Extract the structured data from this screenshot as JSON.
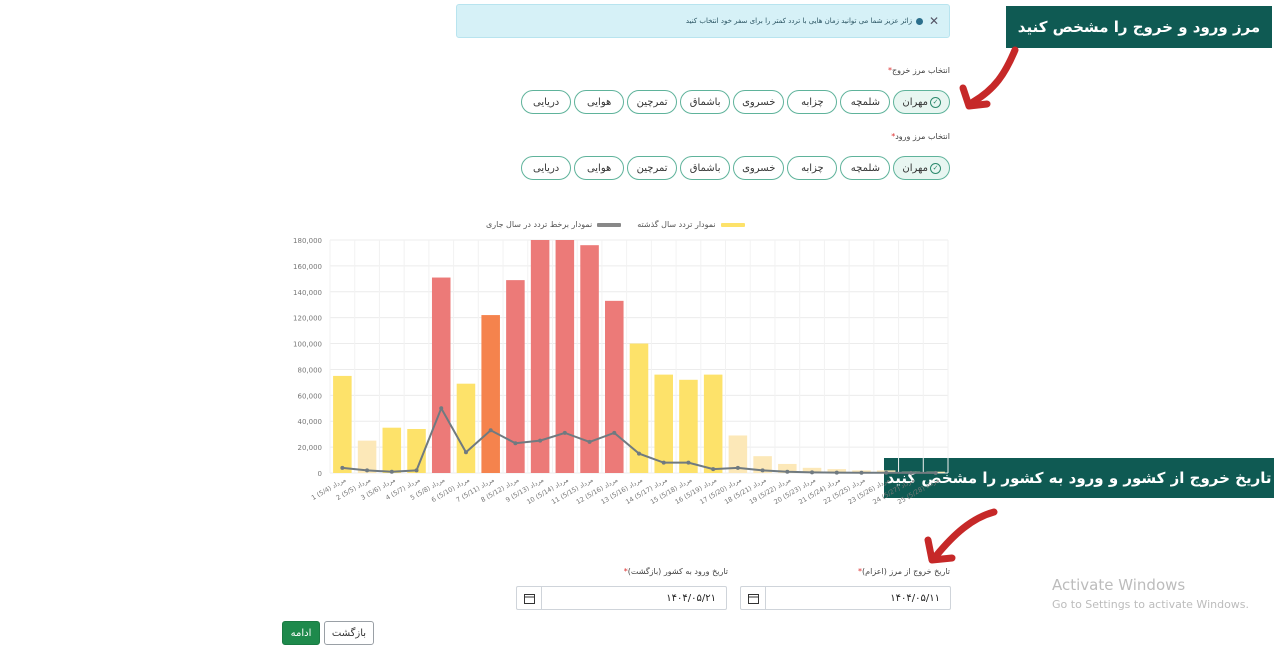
{
  "alert": {
    "text": "زائر عزیز شما می توانید زمان هایی با تردد کمتر را برای سفر خود انتخاب کنید"
  },
  "callouts": {
    "borders": "مرز ورود و خروج را مشخص کنید",
    "dates": "تاریخ خروج از کشور و ورود به کشور را مشخص کنید"
  },
  "exit_border": {
    "label": "انتخاب مرز خروج",
    "options": [
      "مهران",
      "شلمچه",
      "چزابه",
      "خسروی",
      "باشماق",
      "تمرچین",
      "هوایی",
      "دریایی"
    ],
    "selected": "مهران"
  },
  "entry_border": {
    "label": "انتخاب مرز ورود",
    "options": [
      "مهران",
      "شلمچه",
      "چزابه",
      "خسروی",
      "باشماق",
      "تمرچین",
      "هوایی",
      "دریایی"
    ],
    "selected": "مهران"
  },
  "colors": {
    "accent": "#1e8a4c",
    "pill_border": "#5fb39b",
    "bar_light": "#fce8b8",
    "bar_yellow": "#fde26a",
    "bar_red": "#ec7a78",
    "bar_orange": "#f5834d",
    "line": "#707a80",
    "callout": "#0f5a53",
    "arrow": "#c62828"
  },
  "chart_data": {
    "type": "bar",
    "legend": [
      {
        "name": "نمودار تردد سال گذشته",
        "color": "#fde26a"
      },
      {
        "name": "نمودار برخط تردد در سال جاری",
        "color": "#888888"
      }
    ],
    "categories": [
      "1 مرداد (5/4)",
      "2 مرداد (5/5)",
      "3 مرداد (5/6)",
      "4 مرداد (5/7)",
      "5 مرداد (5/8)",
      "6 مرداد (5/10)",
      "7 مرداد (5/11)",
      "8 مرداد (5/12)",
      "9 مرداد (5/13)",
      "10 مرداد (5/14)",
      "11 مرداد (5/15)",
      "12 مرداد (5/16)",
      "13 مرداد (5/16)",
      "14 مرداد (5/17)",
      "15 مرداد (5/18)",
      "16 مرداد (5/19)",
      "17 مرداد (5/20)",
      "18 مرداد (5/21)",
      "19 مرداد (5/22)",
      "20 مرداد (5/23)",
      "21 مرداد (5/24)",
      "22 مرداد (5/25)",
      "23 مرداد (5/26)",
      "24 مرداد (5/27)",
      "25 مرداد (5/28)"
    ],
    "series": [
      {
        "name": "نمودار تردد سال گذشته",
        "values": [
          75000,
          25000,
          35000,
          34000,
          151000,
          69000,
          122000,
          149000,
          180000,
          180000,
          176000,
          133000,
          100000,
          76000,
          72000,
          76000,
          29000,
          13000,
          7000,
          4000,
          3000,
          2000,
          2000,
          1000,
          1000
        ],
        "colors": [
          "#fde26a",
          "#fce8b8",
          "#fde26a",
          "#fde26a",
          "#ec7a78",
          "#fde26a",
          "#f5834d",
          "#ec7a78",
          "#ec7a78",
          "#ec7a78",
          "#ec7a78",
          "#ec7a78",
          "#fde26a",
          "#fde26a",
          "#fde26a",
          "#fde26a",
          "#fce8b8",
          "#fce8b8",
          "#fce8b8",
          "#fce8b8",
          "#fce8b8",
          "#fce8b8",
          "#fce8b8",
          "#fce8b8",
          "#fce8b8"
        ]
      },
      {
        "name": "نمودار برخط تردد در سال جاری",
        "values": [
          4000,
          2000,
          1000,
          2000,
          50000,
          16000,
          33000,
          23000,
          25000,
          31000,
          24000,
          31000,
          15000,
          8000,
          8000,
          3000,
          4000,
          2000,
          1000,
          500,
          300,
          200,
          200,
          100,
          100
        ]
      }
    ],
    "ylim": [
      0,
      180000
    ],
    "yticks": [
      "0",
      "20,000",
      "40,000",
      "60,000",
      "80,000",
      "100,000",
      "120,000",
      "140,000",
      "160,000",
      "180,000"
    ],
    "grid": true,
    "legend_position": "top"
  },
  "exit_date": {
    "label": "تاریخ خروج از مرز (اعزام)",
    "value": "۱۴۰۴/۰۵/۱۱"
  },
  "return_date": {
    "label": "تاریخ ورود به کشور (بازگشت)",
    "value": "۱۴۰۴/۰۵/۲۱"
  },
  "buttons": {
    "continue": "ادامه",
    "back": "بازگشت"
  },
  "watermark": {
    "title": "Activate Windows",
    "subtitle": "Go to Settings to activate Windows."
  }
}
